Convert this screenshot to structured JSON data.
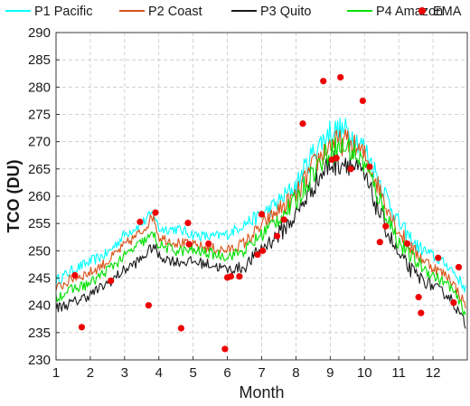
{
  "chart_data": {
    "type": "line",
    "xlabel": "Month",
    "ylabel": "TCO (DU)",
    "xlim": [
      1,
      13
    ],
    "ylim": [
      230,
      290
    ],
    "xticks": [
      1,
      2,
      3,
      4,
      5,
      6,
      7,
      8,
      9,
      10,
      11,
      12
    ],
    "yticks": [
      230,
      235,
      240,
      245,
      250,
      255,
      260,
      265,
      270,
      275,
      280,
      285,
      290
    ],
    "grid": true,
    "legend": "top",
    "series": [
      {
        "name": "P1 Pacific",
        "kind": "line",
        "color": "#00ffff",
        "points": [
          [
            1,
            244.5
          ],
          [
            1.5,
            246.5
          ],
          [
            2,
            248
          ],
          [
            2.5,
            249.5
          ],
          [
            3,
            253
          ],
          [
            3.5,
            255
          ],
          [
            3.85,
            257
          ],
          [
            4,
            254
          ],
          [
            4.5,
            254
          ],
          [
            5,
            253
          ],
          [
            5.5,
            252.5
          ],
          [
            6,
            253
          ],
          [
            6.5,
            255
          ],
          [
            7,
            256.5
          ],
          [
            7.5,
            259
          ],
          [
            8,
            262
          ],
          [
            8.5,
            268
          ],
          [
            9,
            272
          ],
          [
            9.5,
            272
          ],
          [
            10,
            269
          ],
          [
            10.5,
            262
          ],
          [
            11,
            255
          ],
          [
            11.5,
            251
          ],
          [
            12,
            249
          ],
          [
            12.5,
            247
          ],
          [
            12.95,
            243
          ]
        ]
      },
      {
        "name": "P2 Coast",
        "kind": "line",
        "color": "#d95319",
        "points": [
          [
            1,
            243
          ],
          [
            1.5,
            245
          ],
          [
            2,
            246
          ],
          [
            2.5,
            248
          ],
          [
            3,
            251
          ],
          [
            3.5,
            253.5
          ],
          [
            3.85,
            256.5
          ],
          [
            4,
            252.5
          ],
          [
            4.5,
            251.5
          ],
          [
            5,
            251
          ],
          [
            5.5,
            250.5
          ],
          [
            6,
            250
          ],
          [
            6.5,
            251.5
          ],
          [
            7,
            254.5
          ],
          [
            7.5,
            257.5
          ],
          [
            8,
            260
          ],
          [
            8.5,
            265.5
          ],
          [
            9,
            269.5
          ],
          [
            9.5,
            270
          ],
          [
            10,
            267.5
          ],
          [
            10.5,
            260.5
          ],
          [
            11,
            253.5
          ],
          [
            11.5,
            249.5
          ],
          [
            12,
            247
          ],
          [
            12.5,
            245
          ],
          [
            12.95,
            240
          ]
        ]
      },
      {
        "name": "P3 Quito",
        "kind": "line",
        "color": "#1a1a1a",
        "points": [
          [
            1,
            239.5
          ],
          [
            1.5,
            240.5
          ],
          [
            2,
            242
          ],
          [
            2.5,
            244
          ],
          [
            3,
            246.5
          ],
          [
            3.5,
            248.5
          ],
          [
            3.85,
            251
          ],
          [
            4,
            249
          ],
          [
            4.5,
            248
          ],
          [
            5,
            248
          ],
          [
            5.5,
            247.5
          ],
          [
            6,
            246.5
          ],
          [
            6.5,
            247
          ],
          [
            7,
            250.5
          ],
          [
            7.5,
            253
          ],
          [
            8,
            256.5
          ],
          [
            8.5,
            262
          ],
          [
            9,
            266
          ],
          [
            9.5,
            266.5
          ],
          [
            10,
            263.5
          ],
          [
            10.5,
            256
          ],
          [
            11,
            249
          ],
          [
            11.5,
            245.5
          ],
          [
            12,
            243.5
          ],
          [
            12.5,
            241.5
          ],
          [
            12.95,
            236.5
          ]
        ]
      },
      {
        "name": "P4 Amazon",
        "kind": "line",
        "color": "#00e000",
        "points": [
          [
            1,
            241.5
          ],
          [
            1.5,
            243
          ],
          [
            2,
            244
          ],
          [
            2.5,
            246.5
          ],
          [
            3,
            249
          ],
          [
            3.5,
            251.5
          ],
          [
            3.85,
            253
          ],
          [
            4,
            251
          ],
          [
            4.5,
            250
          ],
          [
            5,
            250
          ],
          [
            5.5,
            249.5
          ],
          [
            6,
            249
          ],
          [
            6.5,
            250
          ],
          [
            7,
            253
          ],
          [
            7.5,
            256
          ],
          [
            8,
            259
          ],
          [
            8.5,
            264.5
          ],
          [
            9,
            268.5
          ],
          [
            9.5,
            269
          ],
          [
            10,
            266
          ],
          [
            10.5,
            258.5
          ],
          [
            11,
            251.5
          ],
          [
            11.5,
            248
          ],
          [
            12,
            245.5
          ],
          [
            12.5,
            243.5
          ],
          [
            12.95,
            238.5
          ]
        ]
      },
      {
        "name": "EMA",
        "kind": "scatter",
        "color": "#ee0000",
        "points": [
          [
            1.55,
            245.5
          ],
          [
            1.75,
            236
          ],
          [
            2.6,
            244.5
          ],
          [
            3.45,
            255.3
          ],
          [
            3.7,
            240
          ],
          [
            3.9,
            257
          ],
          [
            4.65,
            235.8
          ],
          [
            4.85,
            255.1
          ],
          [
            4.88,
            251.2
          ],
          [
            5.45,
            251.3
          ],
          [
            5.93,
            232
          ],
          [
            6.0,
            245.1
          ],
          [
            6.1,
            245.3
          ],
          [
            6.35,
            245.3
          ],
          [
            6.88,
            249.3
          ],
          [
            7.0,
            256.7
          ],
          [
            7.03,
            250
          ],
          [
            7.45,
            252.7
          ],
          [
            7.65,
            255.7
          ],
          [
            8.2,
            273.3
          ],
          [
            8.8,
            281.1
          ],
          [
            9.05,
            266.7
          ],
          [
            9.18,
            267
          ],
          [
            9.3,
            281.8
          ],
          [
            9.6,
            265
          ],
          [
            9.95,
            277.5
          ],
          [
            10.15,
            265.4
          ],
          [
            10.45,
            251.6
          ],
          [
            10.62,
            254.5
          ],
          [
            11.25,
            251.3
          ],
          [
            11.58,
            241.5
          ],
          [
            11.65,
            238.6
          ],
          [
            12.15,
            248.7
          ],
          [
            12.6,
            240.5
          ],
          [
            12.75,
            247
          ]
        ]
      }
    ]
  }
}
